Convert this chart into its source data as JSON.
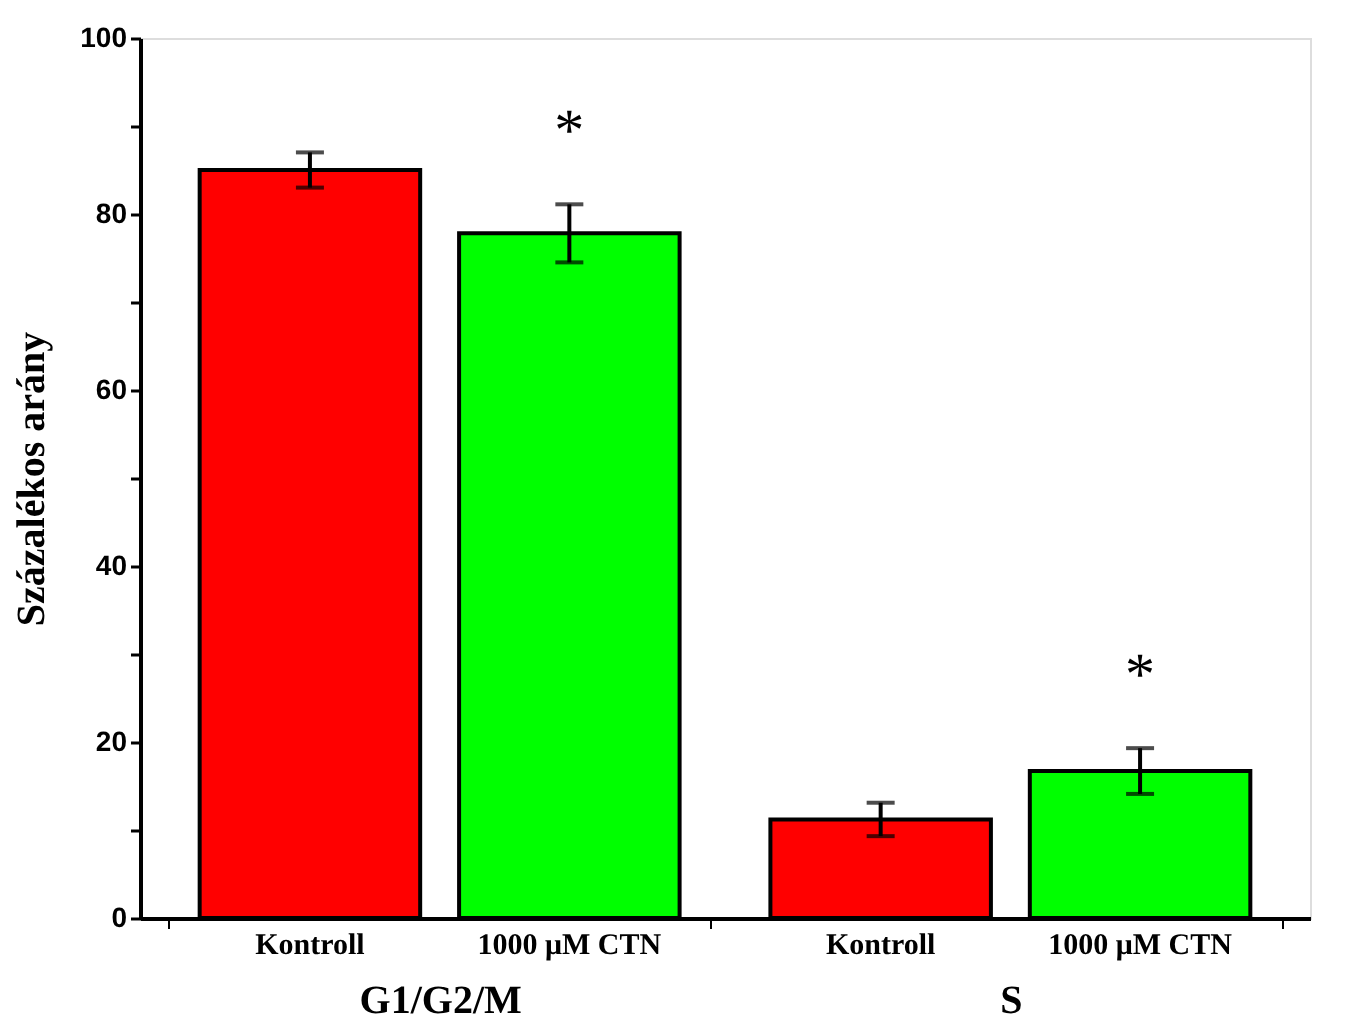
{
  "chart_data": {
    "type": "bar",
    "ylabel": "Százalékos arány",
    "categories": [
      "G1/G2/M",
      "S"
    ],
    "series": [
      {
        "name": "Kontroll",
        "color": "#ff0000",
        "values": [
          85.0,
          11.2
        ],
        "errors": [
          2.0,
          1.9
        ]
      },
      {
        "name": "1000 μM CTN",
        "color": "#00ff00",
        "values": [
          77.8,
          16.7
        ],
        "errors": [
          3.3,
          2.6
        ]
      }
    ],
    "ylim": [
      0,
      100
    ],
    "yticks": [
      0,
      {
        "value": 10,
        "label": null
      },
      20,
      {
        "value": 30,
        "label": null
      },
      40,
      {
        "value": 50,
        "label": null
      },
      60,
      {
        "value": 70,
        "label": null
      },
      80,
      {
        "value": 90,
        "label": null
      },
      100
    ],
    "annotations": [
      "*",
      "*"
    ],
    "grid": false
  }
}
